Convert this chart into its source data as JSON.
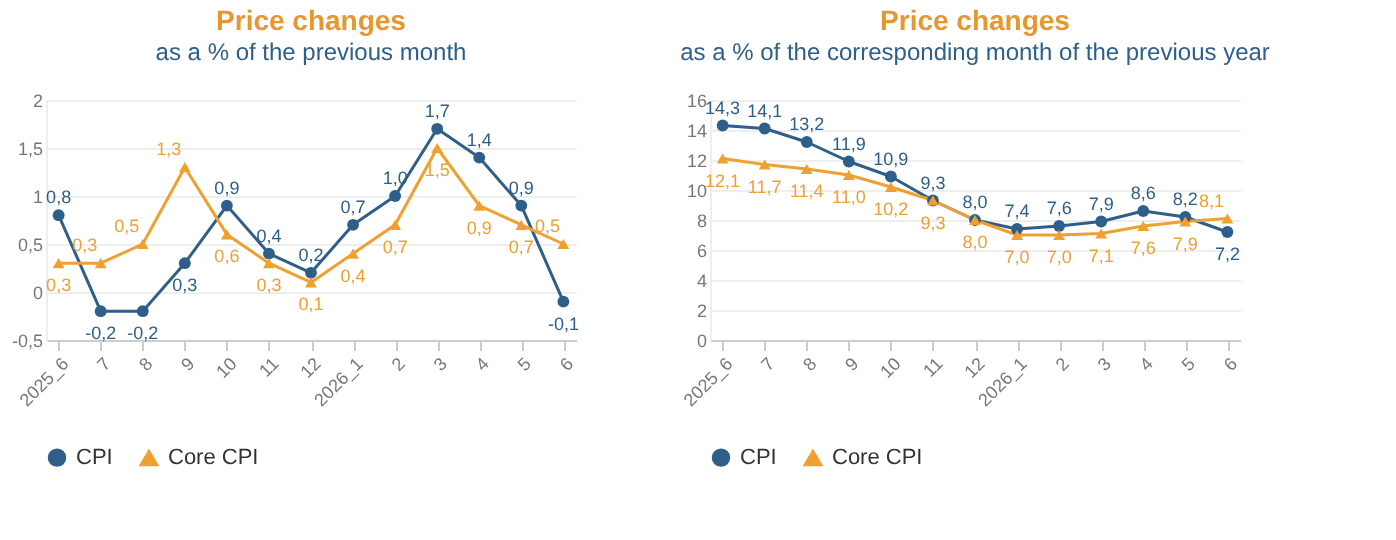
{
  "chart_data": [
    {
      "type": "line",
      "title": "Price changes",
      "subtitle": "as a % of the previous month",
      "categories": [
        "2025_6",
        "7",
        "8",
        "9",
        "10",
        "11",
        "12",
        "2026_1",
        "2",
        "3",
        "4",
        "5",
        "6"
      ],
      "series": [
        {
          "name": "CPI",
          "color": "#2e5f8a",
          "marker": "circle",
          "values": [
            0.8,
            -0.2,
            -0.2,
            0.3,
            0.9,
            0.4,
            0.2,
            0.7,
            1.0,
            1.7,
            1.4,
            0.9,
            -0.1
          ],
          "value_labels": [
            "0,8",
            "-0,2",
            "-0,2",
            "0,3",
            "0,9",
            "0,4",
            "0,2",
            "0,7",
            "1,0",
            "1,7",
            "1,4",
            "0,9",
            "-0,1"
          ]
        },
        {
          "name": "Core CPI",
          "color": "#f0a030",
          "marker": "triangle",
          "values": [
            0.3,
            0.3,
            0.5,
            1.3,
            0.6,
            0.3,
            0.1,
            0.4,
            0.7,
            1.5,
            0.9,
            0.7,
            0.5
          ],
          "value_labels": [
            "0,3",
            "0,3",
            "0,5",
            "1,3",
            "0,6",
            "0,3",
            "0,1",
            "0,4",
            "0,7",
            "1,5",
            "0,9",
            "0,7",
            "0,5"
          ]
        }
      ],
      "ylim": [
        -0.5,
        2
      ],
      "yticks": [
        {
          "value": -0.5,
          "label": "-0,5"
        },
        0,
        {
          "value": 0.5,
          "label": "0,5"
        },
        1,
        {
          "value": 1.5,
          "label": "1,5"
        },
        2
      ],
      "grid": "y",
      "legend": "bottom"
    },
    {
      "type": "line",
      "title": "Price changes",
      "subtitle": "as a % of the corresponding month of the previous year",
      "categories": [
        "2025_6",
        "7",
        "8",
        "9",
        "10",
        "11",
        "12",
        "2026_1",
        "2",
        "3",
        "4",
        "5",
        "6"
      ],
      "series": [
        {
          "name": "CPI",
          "color": "#2e5f8a",
          "marker": "circle",
          "values": [
            14.3,
            14.1,
            13.2,
            11.9,
            10.9,
            9.3,
            8.0,
            7.4,
            7.6,
            7.9,
            8.6,
            8.2,
            7.2
          ],
          "value_labels": [
            "14,3",
            "14,1",
            "13,2",
            "11,9",
            "10,9",
            "9,3",
            "8,0",
            "7,4",
            "7,6",
            "7,9",
            "8,6",
            "8,2",
            "7,2"
          ]
        },
        {
          "name": "Core CPI",
          "color": "#f0a030",
          "marker": "triangle",
          "values": [
            12.1,
            11.7,
            11.4,
            11.0,
            10.2,
            9.3,
            8.0,
            7.0,
            7.0,
            7.1,
            7.6,
            7.9,
            8.1
          ],
          "value_labels": [
            "12,1",
            "11,7",
            "11,4",
            "11,0",
            "10,2",
            "9,3",
            "8,0",
            "7,0",
            "7,0",
            "7,1",
            "7,6",
            "7,9",
            "8,1"
          ]
        }
      ],
      "ylim": [
        0,
        16
      ],
      "yticks": [
        0,
        2,
        4,
        6,
        8,
        10,
        12,
        14,
        16
      ],
      "grid": "y",
      "legend": "bottom"
    }
  ]
}
